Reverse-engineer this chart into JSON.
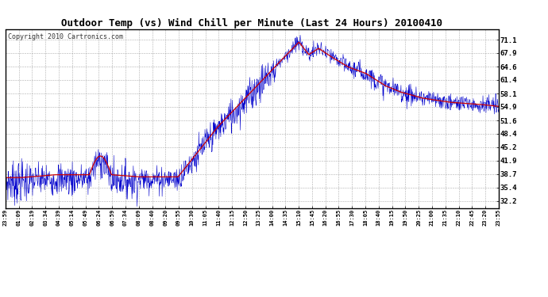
{
  "title": "Outdoor Temp (vs) Wind Chill per Minute (Last 24 Hours) 20100410",
  "copyright": "Copyright 2010 Cartronics.com",
  "yticks": [
    32.2,
    35.4,
    38.7,
    41.9,
    45.2,
    48.4,
    51.6,
    54.9,
    58.1,
    61.4,
    64.6,
    67.9,
    71.1
  ],
  "ylim": [
    30.5,
    73.5
  ],
  "xtick_labels": [
    "23:59",
    "01:09",
    "02:19",
    "03:34",
    "04:39",
    "05:14",
    "05:49",
    "06:24",
    "06:59",
    "07:34",
    "08:09",
    "08:40",
    "09:20",
    "09:55",
    "10:30",
    "11:05",
    "11:40",
    "12:15",
    "12:50",
    "13:25",
    "14:00",
    "14:35",
    "15:10",
    "15:45",
    "16:20",
    "16:55",
    "17:30",
    "18:05",
    "18:40",
    "19:15",
    "19:50",
    "20:25",
    "21:00",
    "21:35",
    "22:10",
    "22:45",
    "23:20",
    "23:55"
  ],
  "background_color": "#ffffff",
  "plot_bg_color": "#ffffff",
  "grid_color": "#999999",
  "title_fontsize": 9,
  "copyright_fontsize": 6,
  "red_line_color": "#cc0000",
  "blue_line_color": "#0000cc",
  "figwidth": 6.9,
  "figheight": 3.75,
  "dpi": 100
}
